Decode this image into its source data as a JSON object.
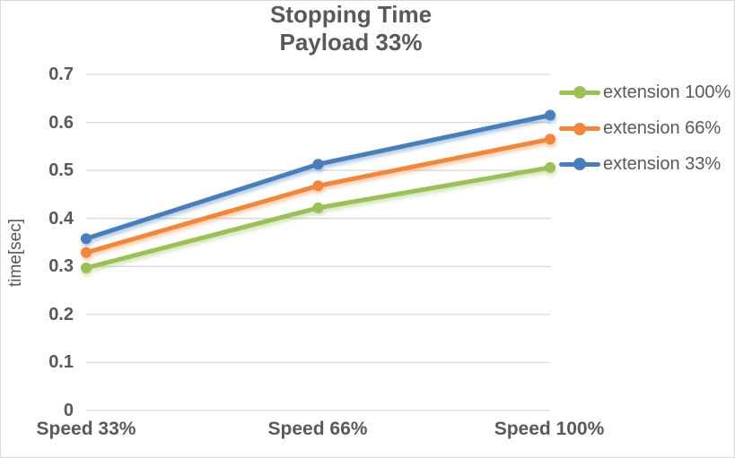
{
  "chart_data": {
    "type": "line",
    "title": "Stopping Time",
    "subtitle": "Payload 33%",
    "ylabel": "time[sec]",
    "xlabel": "",
    "categories": [
      "Speed 33%",
      "Speed 66%",
      "Speed 100%"
    ],
    "ylim": [
      0,
      0.7
    ],
    "ytick_step": 0.1,
    "ytick_labels": [
      "0.7",
      "0.6",
      "0.5",
      "0.4",
      "0.3",
      "0.2",
      "0.1",
      "0"
    ],
    "grid": true,
    "legend_position": "right",
    "series": [
      {
        "name": "extension 100%",
        "color": "#9CC059",
        "values": [
          0.297,
          0.422,
          0.506
        ]
      },
      {
        "name": "extension 66%",
        "color": "#F0873D",
        "values": [
          0.329,
          0.468,
          0.565
        ]
      },
      {
        "name": "extension 33%",
        "color": "#4A7EBB",
        "values": [
          0.358,
          0.513,
          0.615
        ]
      }
    ],
    "colors": {
      "text": "#595959",
      "gridline": "#D9D9D9",
      "border": "#D8D8D8",
      "background": "#FFFFFF"
    }
  }
}
